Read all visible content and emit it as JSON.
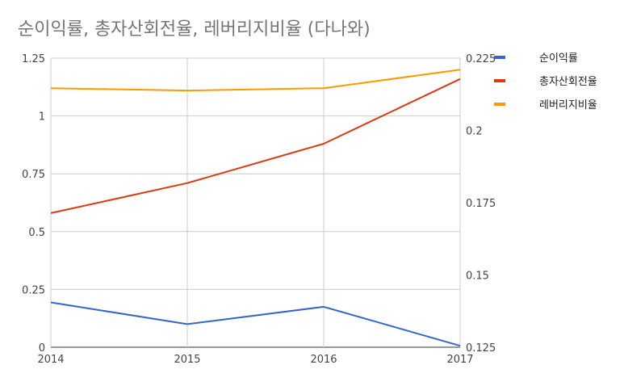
{
  "chart_data": {
    "type": "line",
    "title": "순이익률, 총자산회전율, 레버리지비율 (다나와)",
    "categories": [
      "2014",
      "2015",
      "2016",
      "2017"
    ],
    "left_axis": {
      "min": 0,
      "max": 1.25,
      "ticks": [
        "0",
        "0.25",
        "0.5",
        "0.75",
        "1",
        "1.25"
      ]
    },
    "right_axis": {
      "min": 0.125,
      "max": 0.225,
      "ticks": [
        "0.125",
        "0.15",
        "0.175",
        "0.2",
        "0.225"
      ]
    },
    "grid": true,
    "legend_position": "right",
    "series": [
      {
        "name": "순이익률",
        "axis": "right",
        "color": "#3366cc",
        "values": [
          0.1405,
          0.133,
          0.139,
          0.1255
        ]
      },
      {
        "name": "총자산회전율",
        "axis": "left",
        "color": "#dc3912",
        "values": [
          0.58,
          0.71,
          0.88,
          1.16
        ]
      },
      {
        "name": "레버리지비율",
        "axis": "left",
        "color": "#ff9900",
        "values": [
          1.12,
          1.11,
          1.12,
          1.2
        ]
      }
    ]
  }
}
